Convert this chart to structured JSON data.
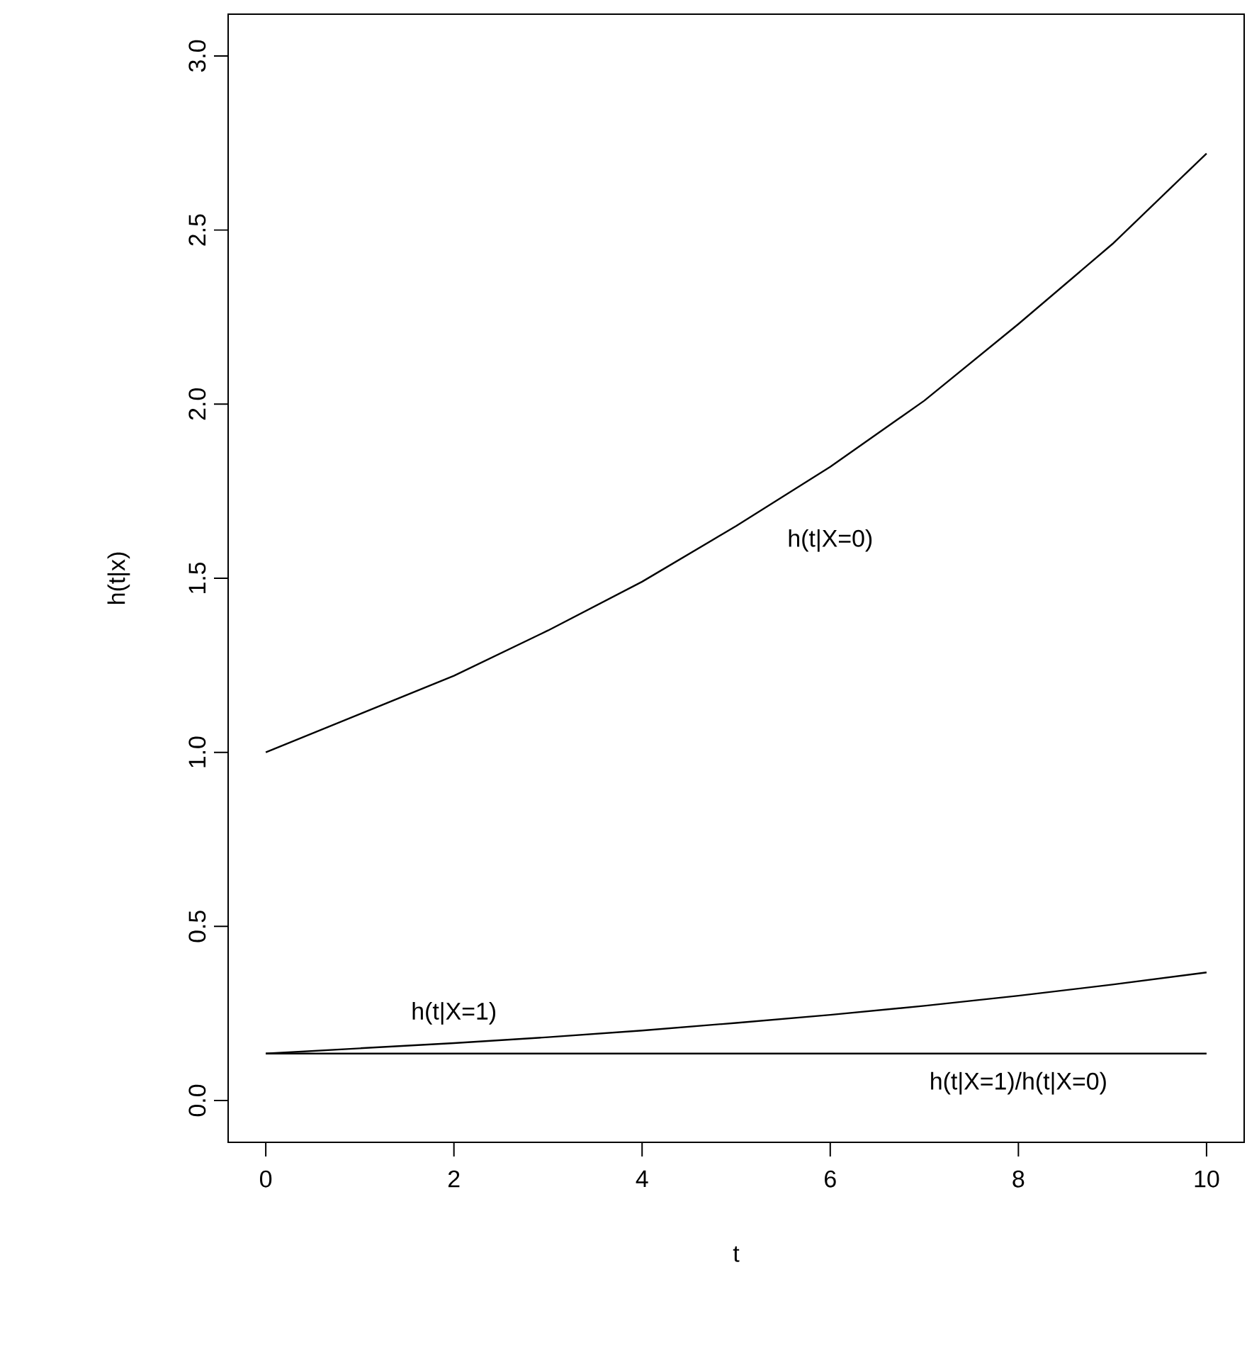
{
  "chart_data": {
    "type": "line",
    "xlabel": "t",
    "ylabel": "h(t|x)",
    "x": [
      0,
      1,
      2,
      3,
      4,
      5,
      6,
      7,
      8,
      9,
      10
    ],
    "series": [
      {
        "name": "h(t|X=0)",
        "color": "#000000",
        "values": [
          1.0,
          1.11,
          1.22,
          1.35,
          1.49,
          1.65,
          1.82,
          2.01,
          2.23,
          2.46,
          2.72
        ]
      },
      {
        "name": "h(t|X=1)",
        "color": "#000000",
        "values": [
          0.135,
          0.15,
          0.165,
          0.182,
          0.201,
          0.223,
          0.246,
          0.272,
          0.301,
          0.333,
          0.368
        ]
      },
      {
        "name": "h(t|X=1)/h(t|X=0)",
        "color": "#000000",
        "values": [
          0.135,
          0.135,
          0.135,
          0.135,
          0.135,
          0.135,
          0.135,
          0.135,
          0.135,
          0.135,
          0.135
        ]
      }
    ],
    "xlim": [
      -0.4,
      10.4
    ],
    "ylim": [
      -0.12,
      3.12
    ],
    "xticks": [
      0,
      2,
      4,
      6,
      8,
      10
    ],
    "yticks": [
      {
        "value": 0,
        "label": "0.0"
      },
      {
        "value": 0.5,
        "label": "0.5"
      },
      {
        "value": 1,
        "label": "1.0"
      },
      {
        "value": 1.5,
        "label": "1.5"
      },
      {
        "value": 2,
        "label": "2.0"
      },
      {
        "value": 2.5,
        "label": "2.5"
      },
      {
        "value": 3,
        "label": "3.0"
      }
    ],
    "grid": false,
    "marker": "none",
    "line_style": "solid"
  }
}
